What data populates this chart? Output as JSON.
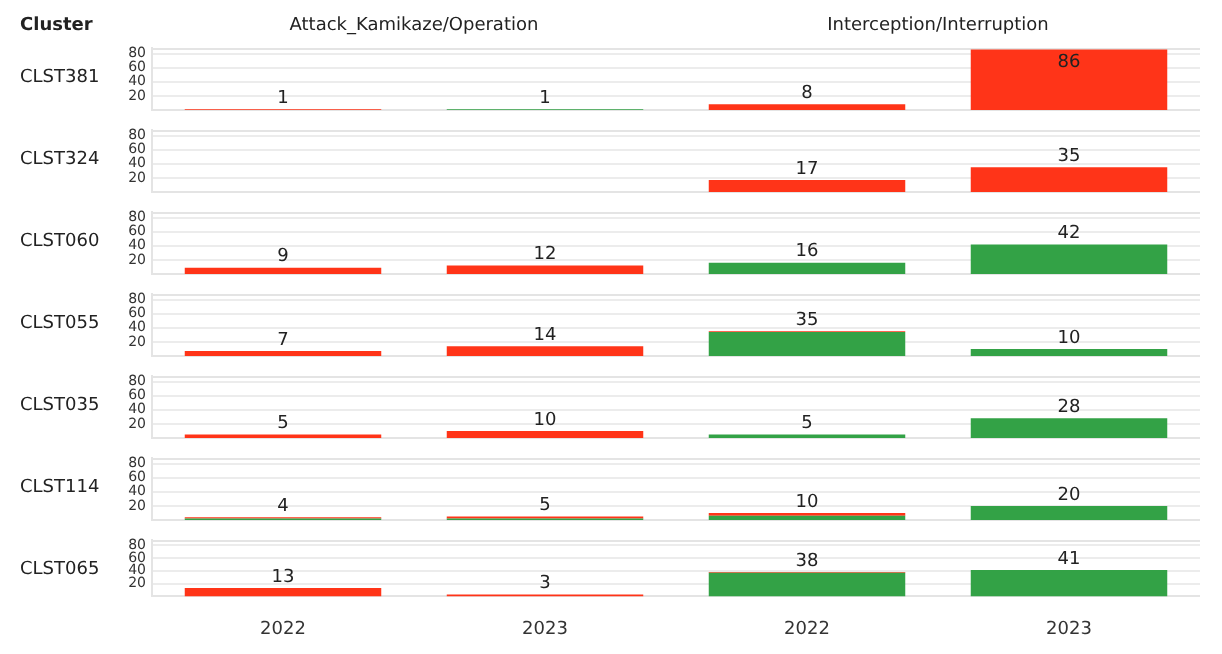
{
  "chart_data": [
    {
      "type": "bar",
      "stacked": true,
      "ylabel": "CLST381",
      "annotations": [
        "Cluster",
        "Attack_Kamikaze/Operation",
        "Interception/Interruption"
      ],
      "categories": [
        "2022",
        "2023",
        "2022",
        "2023"
      ],
      "series": [
        {
          "color": "#33a246",
          "values": [
            null,
            1,
            null,
            null
          ]
        },
        {
          "color": "#ff3418",
          "values": [
            1,
            null,
            8,
            86
          ]
        }
      ],
      "totals": [
        "1",
        "1",
        "8",
        "86"
      ],
      "ylim": [
        0,
        88
      ],
      "yticks": [
        20,
        40,
        60,
        80
      ],
      "grid": "y",
      "tick_labels": "y"
    },
    {
      "type": "bar",
      "stacked": true,
      "ylabel": "CLST324",
      "categories": [
        "2022",
        "2023",
        "2022",
        "2023"
      ],
      "series": [
        {
          "color": "#ff3418",
          "values": [
            null,
            null,
            17,
            35
          ]
        }
      ],
      "totals": [
        null,
        null,
        "17",
        "35"
      ],
      "ylim": [
        0,
        88
      ],
      "yticks": [
        20,
        40,
        60,
        80
      ],
      "grid": "y",
      "tick_labels": "y"
    },
    {
      "type": "bar",
      "stacked": true,
      "ylabel": "CLST060",
      "categories": [
        "2022",
        "2023",
        "2022",
        "2023"
      ],
      "series": [
        {
          "color": "#33a246",
          "values": [
            null,
            null,
            16,
            42
          ]
        },
        {
          "color": "#ff3418",
          "values": [
            9,
            12,
            null,
            null
          ]
        }
      ],
      "totals": [
        "9",
        "12",
        "16",
        "42"
      ],
      "ylim": [
        0,
        88
      ],
      "yticks": [
        20,
        40,
        60,
        80
      ],
      "grid": "y",
      "tick_labels": "y"
    },
    {
      "type": "bar",
      "stacked": true,
      "ylabel": "CLST055",
      "categories": [
        "2022",
        "2023",
        "2022",
        "2023"
      ],
      "series": [
        {
          "color": "#33a246",
          "values": [
            null,
            null,
            34,
            10
          ]
        },
        {
          "color": "#ff3418",
          "values": [
            7,
            14,
            1,
            null
          ]
        }
      ],
      "totals": [
        "7",
        "14",
        "35",
        "10"
      ],
      "ylim": [
        0,
        88
      ],
      "yticks": [
        20,
        40,
        60,
        80
      ],
      "grid": "y",
      "tick_labels": "y"
    },
    {
      "type": "bar",
      "stacked": true,
      "ylabel": "CLST035",
      "categories": [
        "2022",
        "2023",
        "2022",
        "2023"
      ],
      "series": [
        {
          "color": "#33a246",
          "values": [
            null,
            null,
            5,
            28
          ]
        },
        {
          "color": "#ff3418",
          "values": [
            5,
            10,
            null,
            null
          ]
        }
      ],
      "totals": [
        "5",
        "10",
        "5",
        "28"
      ],
      "ylim": [
        0,
        88
      ],
      "yticks": [
        20,
        40,
        60,
        80
      ],
      "grid": "y",
      "tick_labels": "y"
    },
    {
      "type": "bar",
      "stacked": true,
      "ylabel": "CLST114",
      "categories": [
        "2022",
        "2023",
        "2022",
        "2023"
      ],
      "series": [
        {
          "color": "#33a246",
          "values": [
            2,
            2,
            6,
            20
          ]
        },
        {
          "color": "#ff3418",
          "values": [
            2,
            3,
            4,
            null
          ]
        }
      ],
      "totals": [
        "4",
        "5",
        "10",
        "20"
      ],
      "ylim": [
        0,
        88
      ],
      "yticks": [
        20,
        40,
        60,
        80
      ],
      "grid": "y",
      "tick_labels": "y"
    },
    {
      "type": "bar",
      "stacked": true,
      "ylabel": "CLST065",
      "categories": [
        "2022",
        "2023",
        "2022",
        "2023"
      ],
      "series": [
        {
          "color": "#33a246",
          "values": [
            null,
            null,
            37,
            41
          ]
        },
        {
          "color": "#ff3418",
          "values": [
            13,
            3,
            1,
            null
          ]
        }
      ],
      "totals": [
        "13",
        "3",
        "38",
        "41"
      ],
      "ylim": [
        0,
        88
      ],
      "yticks": [
        20,
        40,
        60,
        80
      ],
      "grid": "y"
    }
  ]
}
